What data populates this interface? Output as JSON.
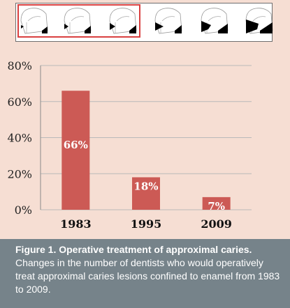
{
  "colors": {
    "panel_bg": "#f6ded3",
    "bar": "#cc5a55",
    "selection": "#d94040",
    "caption_bg": "#76838a"
  },
  "tooth_strip": {
    "icons": [
      "tooth-lesion-stage-1-icon",
      "tooth-lesion-stage-2-icon",
      "tooth-lesion-stage-3-icon",
      "tooth-lesion-stage-4-icon",
      "tooth-lesion-stage-5-icon",
      "tooth-lesion-stage-6-icon"
    ],
    "selected_count": 3
  },
  "chart_data": {
    "type": "bar",
    "categories": [
      "1983",
      "1995",
      "2009"
    ],
    "values": [
      66,
      18,
      7
    ],
    "data_labels": [
      "66%",
      "18%",
      "7%"
    ],
    "yticks": [
      "0%",
      "20%",
      "40%",
      "60%",
      "80%"
    ],
    "ylim": [
      0,
      80
    ],
    "grid": true,
    "title": "",
    "xlabel": "",
    "ylabel": ""
  },
  "caption": {
    "title": "Figure 1. Operative treatment of approximal caries.",
    "body": "Changes in the number of dentists who would operatively treat approximal caries lesions confined to enamel from 1983 to 2009."
  }
}
